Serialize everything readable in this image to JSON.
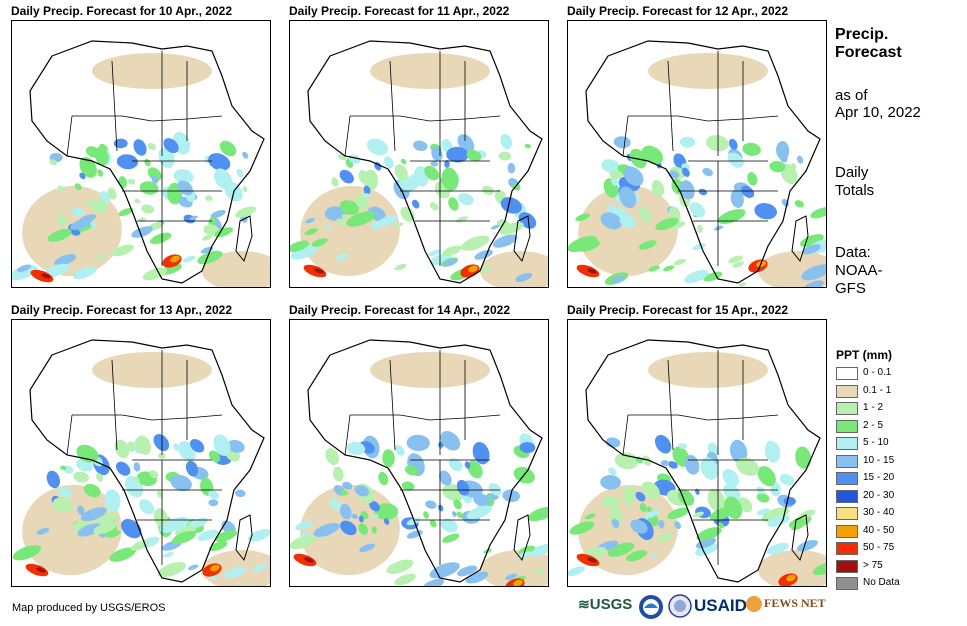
{
  "panels": [
    {
      "title": "Daily Precip. Forecast for 10 Apr., 2022"
    },
    {
      "title": "Daily Precip. Forecast for 11 Apr., 2022"
    },
    {
      "title": "Daily Precip. Forecast for 12 Apr., 2022"
    },
    {
      "title": "Daily Precip. Forecast for 13 Apr., 2022"
    },
    {
      "title": "Daily Precip. Forecast for 14 Apr., 2022"
    },
    {
      "title": "Daily Precip. Forecast for 15 Apr., 2022"
    }
  ],
  "side": {
    "title_line1": "Precip.",
    "title_line2": "Forecast",
    "asof_line1": "as of",
    "asof_line2": "Apr 10, 2022",
    "daily_line1": "Daily",
    "daily_line2": "Totals",
    "data_line1": "Data:",
    "data_line2": "NOAA-",
    "data_line3": "GFS"
  },
  "legend": {
    "title": "PPT (mm)",
    "items": [
      {
        "label": "0 - 0.1",
        "color": "#ffffff"
      },
      {
        "label": "0.1 - 1",
        "color": "#e8d8b8"
      },
      {
        "label": "1 - 2",
        "color": "#b8f0b0"
      },
      {
        "label": "2 - 5",
        "color": "#78e878"
      },
      {
        "label": "5 - 10",
        "color": "#b0f0f0"
      },
      {
        "label": "10 - 15",
        "color": "#88c0f0"
      },
      {
        "label": "15 - 20",
        "color": "#5090f0"
      },
      {
        "label": "20 - 30",
        "color": "#2058e0"
      },
      {
        "label": "30 - 40",
        "color": "#f8e080"
      },
      {
        "label": "40 - 50",
        "color": "#f8a000"
      },
      {
        "label": "50 - 75",
        "color": "#f03000"
      },
      {
        "label": "> 75",
        "color": "#a01010"
      },
      {
        "label": "No Data",
        "color": "#909090"
      }
    ]
  },
  "footer": {
    "credit": "Map produced by USGS/EROS"
  },
  "logos": {
    "usgs": "USGS",
    "noaa": "NOAA",
    "usaid": "USAID",
    "fewsnet": "FEWS NET"
  }
}
